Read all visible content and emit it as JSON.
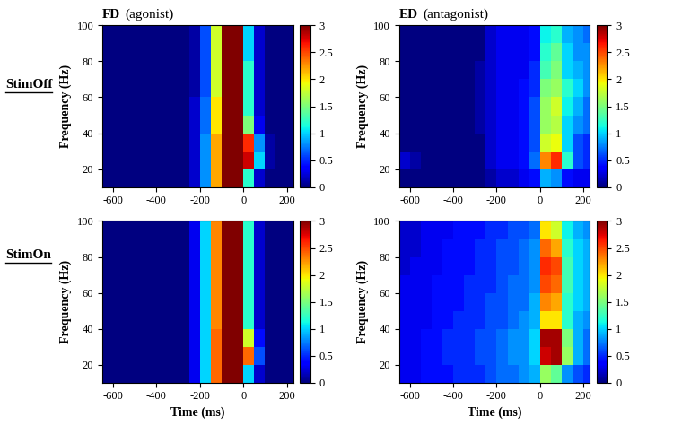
{
  "columns": [
    {
      "name": "FD",
      "role": "(agonist)"
    },
    {
      "name": "ED",
      "role": "(antagonist)"
    }
  ],
  "rows": [
    "StimOff",
    "StimOn"
  ],
  "chart_data": [
    {
      "type": "heatmap",
      "x_label": "Time (ms)",
      "y_label": "Frequency (Hz)",
      "color": "jet",
      "xlim": [
        -650,
        230
      ],
      "ylim": [
        10,
        100
      ],
      "xticks": [
        -600,
        -400,
        -200,
        0,
        200
      ],
      "yticks": [
        20,
        40,
        60,
        80,
        100
      ],
      "x_edges": [
        -650,
        -600,
        -550,
        -500,
        -450,
        -400,
        -350,
        -300,
        -250,
        -200,
        -150,
        -100,
        -50,
        0,
        50,
        100,
        150,
        200,
        250
      ],
      "y_edges": [
        10,
        20,
        30,
        40,
        50,
        60,
        70,
        80,
        90,
        100
      ],
      "colorbar": {
        "range": [
          0,
          3
        ],
        "ticks": [
          0,
          0.5,
          1,
          1.5,
          2,
          2.5,
          3
        ]
      },
      "cells": [
        [
          0,
          0,
          0,
          0,
          0,
          0,
          0,
          0,
          0.2,
          0.8,
          2.2,
          3,
          3,
          1.2,
          0.2,
          0,
          0,
          0
        ],
        [
          0,
          0,
          0,
          0,
          0,
          0,
          0,
          0,
          0.2,
          0.8,
          2.2,
          3,
          3,
          2.8,
          1.0,
          0.1,
          0,
          0
        ],
        [
          0,
          0,
          0,
          0,
          0,
          0,
          0,
          0,
          0.2,
          0.8,
          2.2,
          3,
          3,
          2.6,
          0.8,
          0.1,
          0,
          0
        ],
        [
          0,
          0,
          0,
          0,
          0,
          0,
          0,
          0,
          0.2,
          0.7,
          2.0,
          3,
          3,
          1.5,
          0.3,
          0,
          0,
          0
        ],
        [
          0,
          0,
          0,
          0,
          0,
          0,
          0,
          0,
          0.2,
          0.7,
          2.0,
          3,
          3,
          1.2,
          0.2,
          0,
          0,
          0
        ],
        [
          0,
          0,
          0,
          0,
          0,
          0,
          0,
          0,
          0.1,
          0.6,
          1.8,
          3,
          3,
          1.2,
          0.2,
          0,
          0,
          0
        ],
        [
          0,
          0,
          0,
          0,
          0,
          0,
          0,
          0,
          0.1,
          0.6,
          1.8,
          3,
          3,
          1.2,
          0.2,
          0,
          0,
          0
        ],
        [
          0,
          0,
          0,
          0,
          0,
          0,
          0,
          0,
          0.1,
          0.6,
          1.8,
          3,
          3,
          1.0,
          0.2,
          0,
          0,
          0
        ],
        [
          0,
          0,
          0,
          0,
          0,
          0,
          0,
          0,
          0.1,
          0.6,
          1.8,
          3,
          3,
          1.0,
          0.2,
          0,
          0,
          0
        ]
      ]
    },
    {
      "type": "heatmap",
      "x_label": "Time (ms)",
      "y_label": "Frequency (Hz)",
      "color": "jet",
      "xlim": [
        -650,
        230
      ],
      "ylim": [
        10,
        100
      ],
      "xticks": [
        -600,
        -400,
        -200,
        0,
        200
      ],
      "yticks": [
        20,
        40,
        60,
        80,
        100
      ],
      "x_edges": [
        -650,
        -600,
        -550,
        -500,
        -450,
        -400,
        -350,
        -300,
        -250,
        -200,
        -150,
        -100,
        -50,
        0,
        50,
        100,
        150,
        200,
        250
      ],
      "y_edges": [
        10,
        20,
        30,
        40,
        50,
        60,
        70,
        80,
        90,
        100
      ],
      "colorbar": {
        "range": [
          0,
          3
        ],
        "ticks": [
          0,
          0.5,
          1,
          1.5,
          2,
          2.5,
          3
        ]
      },
      "cells": [
        [
          0,
          0,
          0,
          0,
          0,
          0,
          0,
          0,
          0.1,
          0.2,
          0.2,
          0.3,
          0.4,
          0.9,
          0.8,
          0.4,
          0.3,
          0.3
        ],
        [
          0.2,
          0.1,
          0,
          0,
          0,
          0,
          0,
          0,
          0.2,
          0.3,
          0.3,
          0.4,
          0.7,
          2.3,
          2.6,
          1.2,
          0.6,
          0.5
        ],
        [
          0,
          0,
          0,
          0,
          0,
          0,
          0,
          0,
          0.2,
          0.3,
          0.3,
          0.4,
          0.6,
          1.8,
          1.9,
          1.0,
          0.6,
          0.5
        ],
        [
          0,
          0,
          0,
          0,
          0,
          0,
          0,
          0.1,
          0.2,
          0.3,
          0.3,
          0.4,
          0.6,
          1.6,
          1.7,
          1.0,
          0.8,
          0.7
        ],
        [
          0,
          0,
          0,
          0,
          0,
          0,
          0,
          0.1,
          0.2,
          0.3,
          0.3,
          0.4,
          0.6,
          1.6,
          1.8,
          1.1,
          0.9,
          0.7
        ],
        [
          0,
          0,
          0,
          0,
          0,
          0,
          0,
          0.1,
          0.2,
          0.3,
          0.3,
          0.4,
          0.5,
          1.5,
          1.6,
          1.2,
          1.0,
          0.8
        ],
        [
          0,
          0,
          0,
          0,
          0,
          0,
          0,
          0.1,
          0.2,
          0.3,
          0.3,
          0.3,
          0.5,
          1.3,
          1.5,
          1.0,
          0.9,
          0.8
        ],
        [
          0,
          0,
          0,
          0,
          0,
          0,
          0,
          0,
          0.2,
          0.3,
          0.3,
          0.3,
          0.4,
          1.2,
          1.4,
          1.0,
          0.8,
          0.8
        ],
        [
          0,
          0,
          0,
          0,
          0,
          0,
          0,
          0,
          0.2,
          0.3,
          0.3,
          0.3,
          0.4,
          1.1,
          1.2,
          0.9,
          0.8,
          0.7
        ]
      ]
    },
    {
      "type": "heatmap",
      "x_label": "Time (ms)",
      "y_label": "Frequency (Hz)",
      "color": "jet",
      "xlim": [
        -650,
        230
      ],
      "ylim": [
        10,
        100
      ],
      "xticks": [
        -600,
        -400,
        -200,
        0,
        200
      ],
      "yticks": [
        20,
        40,
        60,
        80,
        100
      ],
      "x_edges": [
        -650,
        -600,
        -550,
        -500,
        -450,
        -400,
        -350,
        -300,
        -250,
        -200,
        -150,
        -100,
        -50,
        0,
        50,
        100,
        150,
        200,
        250
      ],
      "y_edges": [
        10,
        20,
        30,
        40,
        50,
        60,
        70,
        80,
        90,
        100
      ],
      "colorbar": {
        "range": [
          0,
          3
        ],
        "ticks": [
          0,
          0.5,
          1,
          1.5,
          2,
          2.5,
          3
        ]
      },
      "cells": [
        [
          0,
          0,
          0,
          0,
          0,
          0,
          0,
          0,
          0.3,
          1.0,
          2.4,
          3,
          3,
          1.0,
          0.2,
          0,
          0,
          0
        ],
        [
          0,
          0,
          0,
          0,
          0,
          0,
          0,
          0,
          0.3,
          1.0,
          2.4,
          3,
          3,
          2.4,
          0.6,
          0,
          0,
          0
        ],
        [
          0,
          0,
          0,
          0,
          0,
          0,
          0,
          0,
          0.3,
          1.0,
          2.4,
          3,
          3,
          1.8,
          0.4,
          0,
          0,
          0
        ],
        [
          0,
          0,
          0,
          0,
          0,
          0,
          0,
          0,
          0.3,
          1.0,
          2.3,
          3,
          3,
          1.2,
          0.2,
          0,
          0,
          0
        ],
        [
          0,
          0,
          0,
          0,
          0,
          0,
          0,
          0,
          0.3,
          1.0,
          2.3,
          3,
          3,
          1.2,
          0.2,
          0,
          0,
          0
        ],
        [
          0,
          0,
          0,
          0,
          0,
          0,
          0,
          0,
          0.3,
          1.0,
          2.3,
          3,
          3,
          1.2,
          0.2,
          0,
          0,
          0
        ],
        [
          0,
          0,
          0,
          0,
          0,
          0,
          0,
          0,
          0.3,
          1.0,
          2.3,
          3,
          3,
          1.2,
          0.2,
          0,
          0,
          0
        ],
        [
          0,
          0,
          0,
          0,
          0,
          0,
          0,
          0,
          0.3,
          1.0,
          2.3,
          3,
          3,
          1.2,
          0.2,
          0,
          0,
          0
        ],
        [
          0,
          0,
          0,
          0,
          0,
          0,
          0,
          0,
          0.3,
          1.0,
          2.3,
          3,
          3,
          1.2,
          0.2,
          0,
          0,
          0
        ]
      ]
    },
    {
      "type": "heatmap",
      "x_label": "Time (ms)",
      "y_label": "Frequency (Hz)",
      "color": "jet",
      "xlim": [
        -650,
        230
      ],
      "ylim": [
        10,
        100
      ],
      "xticks": [
        -600,
        -400,
        -200,
        0,
        200
      ],
      "yticks": [
        20,
        40,
        60,
        80,
        100
      ],
      "x_edges": [
        -650,
        -600,
        -550,
        -500,
        -450,
        -400,
        -350,
        -300,
        -250,
        -200,
        -150,
        -100,
        -50,
        0,
        50,
        100,
        150,
        200,
        250
      ],
      "y_edges": [
        10,
        20,
        30,
        40,
        50,
        60,
        70,
        80,
        90,
        100
      ],
      "colorbar": {
        "range": [
          0,
          3
        ],
        "ticks": [
          0,
          0.5,
          1,
          1.5,
          2,
          2.5,
          3
        ]
      },
      "cells": [
        [
          0.3,
          0.3,
          0.4,
          0.4,
          0.4,
          0.5,
          0.5,
          0.5,
          0.6,
          0.7,
          0.7,
          0.8,
          0.9,
          1.6,
          1.4,
          0.8,
          0.6,
          0.5
        ],
        [
          0.3,
          0.3,
          0.4,
          0.4,
          0.5,
          0.5,
          0.5,
          0.6,
          0.6,
          0.7,
          0.8,
          0.8,
          1.0,
          2.8,
          2.9,
          1.6,
          0.9,
          0.7
        ],
        [
          0.3,
          0.3,
          0.4,
          0.4,
          0.5,
          0.5,
          0.5,
          0.6,
          0.6,
          0.7,
          0.8,
          0.8,
          1.0,
          2.9,
          2.9,
          1.5,
          0.9,
          0.7
        ],
        [
          0.3,
          0.3,
          0.3,
          0.4,
          0.4,
          0.5,
          0.5,
          0.5,
          0.6,
          0.6,
          0.7,
          0.8,
          0.9,
          2.0,
          2.0,
          1.2,
          0.9,
          0.8
        ],
        [
          0.3,
          0.3,
          0.3,
          0.4,
          0.4,
          0.4,
          0.5,
          0.5,
          0.6,
          0.6,
          0.7,
          0.7,
          0.9,
          2.3,
          2.2,
          1.2,
          1.0,
          0.9
        ],
        [
          0.3,
          0.3,
          0.3,
          0.4,
          0.4,
          0.4,
          0.5,
          0.5,
          0.5,
          0.6,
          0.7,
          0.7,
          0.8,
          2.5,
          2.4,
          1.3,
          1.0,
          0.9
        ],
        [
          0.2,
          0.3,
          0.3,
          0.3,
          0.4,
          0.4,
          0.4,
          0.5,
          0.5,
          0.6,
          0.6,
          0.7,
          0.8,
          2.6,
          2.5,
          1.3,
          1.0,
          0.9
        ],
        [
          0.2,
          0.2,
          0.3,
          0.3,
          0.4,
          0.4,
          0.4,
          0.5,
          0.5,
          0.6,
          0.6,
          0.7,
          0.8,
          2.4,
          2.2,
          1.2,
          1.0,
          0.9
        ],
        [
          0.2,
          0.2,
          0.3,
          0.3,
          0.3,
          0.4,
          0.4,
          0.4,
          0.5,
          0.5,
          0.6,
          0.6,
          0.7,
          2.0,
          1.8,
          1.1,
          0.9,
          0.8
        ]
      ]
    }
  ]
}
